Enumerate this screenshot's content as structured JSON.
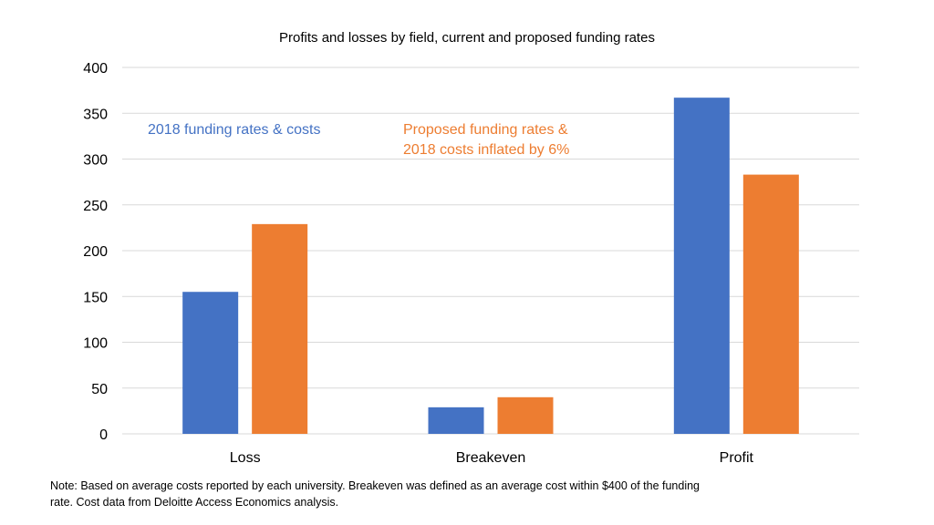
{
  "chart_data": {
    "type": "bar",
    "title": "Profits and losses by field, current and proposed funding rates",
    "xlabel": "",
    "ylabel": "",
    "categories": [
      "Loss",
      "Breakeven",
      "Profit"
    ],
    "series": [
      {
        "name": "2018 funding rates & costs",
        "color": "#4472c4",
        "values": [
          155,
          29,
          367
        ]
      },
      {
        "name": "Proposed funding rates & 2018 costs inflated by 6%",
        "color": "#ed7d31",
        "values": [
          229,
          40,
          283
        ]
      }
    ],
    "ylim": [
      0,
      400
    ],
    "yticks": [
      0,
      50,
      100,
      150,
      200,
      250,
      300,
      350,
      400
    ],
    "grid": true,
    "gridColor": "#d9d9d9",
    "annotations": [
      {
        "lines": [
          "2018 funding rates & costs"
        ],
        "color": "#4472c4"
      },
      {
        "lines": [
          "Proposed funding rates &",
          "2018 costs inflated by 6%"
        ],
        "color": "#ed7d31"
      }
    ],
    "note": "Note: Based on average costs reported by each university. Breakeven was defined as an average cost within $400 of the funding rate. Cost data from Deloitte Access Economics analysis."
  }
}
